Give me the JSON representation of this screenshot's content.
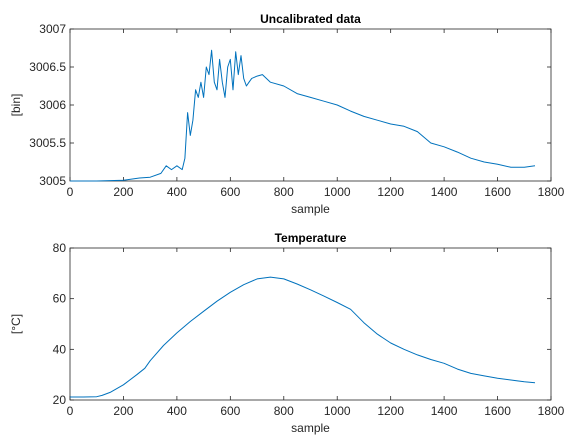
{
  "colors": {
    "series": "#0072BD",
    "axes": "#262626",
    "background": "#ffffff"
  },
  "chart_data": [
    {
      "type": "line",
      "title": "Uncalibrated data",
      "xlabel": "sample",
      "ylabel": "[bin]",
      "xlim": [
        0,
        1800
      ],
      "ylim": [
        3005,
        3007
      ],
      "xticks": [
        0,
        200,
        400,
        600,
        800,
        1000,
        1200,
        1400,
        1600,
        1800
      ],
      "yticks": [
        3005,
        3005.5,
        3006,
        3006.5,
        3007
      ],
      "xtick_labels": [
        "0",
        "200",
        "400",
        "600",
        "800",
        "1000",
        "1200",
        "1400",
        "1600",
        "1800"
      ],
      "ytick_labels": [
        "3005",
        "3005.5",
        "3006",
        "3006.5",
        "3007"
      ],
      "grid": false,
      "series": [
        {
          "x": [
            0,
            100,
            200,
            260,
            300,
            340,
            360,
            380,
            400,
            420,
            430,
            440,
            450,
            460,
            470,
            480,
            490,
            500,
            510,
            520,
            530,
            540,
            550,
            560,
            570,
            580,
            590,
            600,
            610,
            620,
            630,
            640,
            650,
            660,
            670,
            680,
            700,
            720,
            750,
            800,
            850,
            900,
            950,
            1000,
            1050,
            1100,
            1150,
            1200,
            1250,
            1300,
            1350,
            1400,
            1450,
            1500,
            1550,
            1600,
            1650,
            1700,
            1740
          ],
          "y": [
            3005,
            3005,
            3005.01,
            3005.04,
            3005.05,
            3005.1,
            3005.2,
            3005.15,
            3005.2,
            3005.15,
            3005.3,
            3005.9,
            3005.6,
            3005.8,
            3006.2,
            3006.1,
            3006.3,
            3006.1,
            3006.5,
            3006.4,
            3006.72,
            3006.3,
            3006.2,
            3006.6,
            3006.3,
            3006.1,
            3006.5,
            3006.6,
            3006.2,
            3006.7,
            3006.4,
            3006.65,
            3006.35,
            3006.25,
            3006.3,
            3006.35,
            3006.38,
            3006.4,
            3006.3,
            3006.25,
            3006.15,
            3006.1,
            3006.05,
            3006,
            3005.92,
            3005.85,
            3005.8,
            3005.75,
            3005.72,
            3005.65,
            3005.5,
            3005.45,
            3005.38,
            3005.3,
            3005.25,
            3005.22,
            3005.18,
            3005.18,
            3005.2
          ]
        }
      ]
    },
    {
      "type": "line",
      "title": "Temperature",
      "xlabel": "sample",
      "ylabel": "[°C]",
      "xlim": [
        0,
        1800
      ],
      "ylim": [
        20,
        80
      ],
      "xticks": [
        0,
        200,
        400,
        600,
        800,
        1000,
        1200,
        1400,
        1600,
        1800
      ],
      "yticks": [
        20,
        40,
        60,
        80
      ],
      "xtick_labels": [
        "0",
        "200",
        "400",
        "600",
        "800",
        "1000",
        "1200",
        "1400",
        "1600",
        "1800"
      ],
      "ytick_labels": [
        "20",
        "40",
        "60",
        "80"
      ],
      "grid": false,
      "series": [
        {
          "x": [
            0,
            50,
            100,
            120,
            150,
            200,
            250,
            280,
            300,
            350,
            400,
            450,
            500,
            550,
            600,
            650,
            700,
            750,
            800,
            850,
            900,
            950,
            1000,
            1050,
            1100,
            1150,
            1200,
            1250,
            1300,
            1350,
            1400,
            1450,
            1500,
            1550,
            1600,
            1650,
            1700,
            1740
          ],
          "y": [
            21.2,
            21.2,
            21.3,
            21.8,
            23,
            26,
            30,
            32.5,
            35.5,
            41.5,
            46.5,
            51,
            55,
            59,
            62.5,
            65.5,
            67.8,
            68.5,
            67.8,
            65.8,
            63.5,
            61,
            58.5,
            55.8,
            50.5,
            46,
            42.5,
            40,
            37.8,
            36,
            34.5,
            32.2,
            30.5,
            29.5,
            28.6,
            27.9,
            27.2,
            26.8
          ]
        }
      ]
    }
  ]
}
